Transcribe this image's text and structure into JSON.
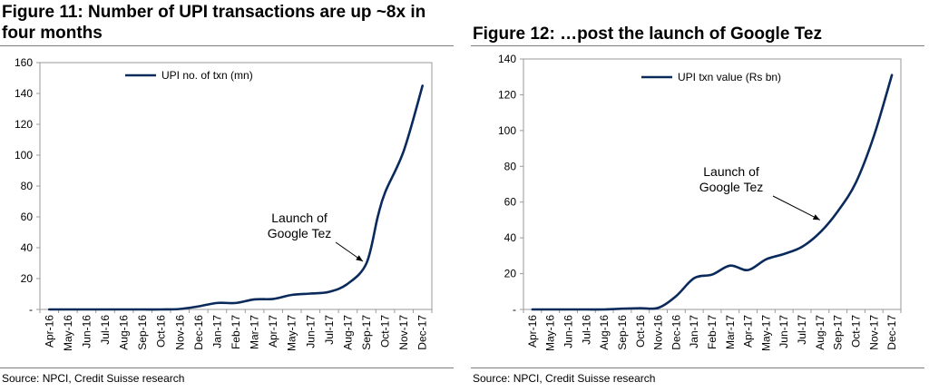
{
  "charts": [
    {
      "figure_title": "Figure 11: Number of UPI transactions are up ~8x in four months",
      "source": "Source: NPCI, Credit Suisse research"
    },
    {
      "figure_title": "Figure 12: …post the launch of Google Tez",
      "source": "Source: NPCI, Credit Suisse research"
    }
  ],
  "chart_data": [
    {
      "type": "line",
      "title": "Figure 11: Number of UPI transactions are up ~8x in four months",
      "x": [
        "Apr-16",
        "May-16",
        "Jun-16",
        "Jul-16",
        "Aug-16",
        "Sep-16",
        "Oct-16",
        "Nov-16",
        "Dec-16",
        "Jan-17",
        "Feb-17",
        "Mar-17",
        "Apr-17",
        "May-17",
        "Jun-17",
        "Jul-17",
        "Aug-17",
        "Sep-17",
        "Oct-17",
        "Nov-17",
        "Dec-17"
      ],
      "yticks": [
        "-",
        "20",
        "40",
        "60",
        "80",
        "100",
        "120",
        "140",
        "160"
      ],
      "ylim": [
        0,
        160
      ],
      "legend_position": "top-left",
      "color": "#0a2a5c",
      "series": [
        {
          "name": "UPI no. of txn (mn)",
          "points": [
            [
              0,
              0
            ],
            [
              1,
              0
            ],
            [
              2,
              0
            ],
            [
              3,
              0
            ],
            [
              4,
              0
            ],
            [
              5,
              0
            ],
            [
              6,
              0
            ],
            [
              7,
              0.3
            ],
            [
              8,
              2
            ],
            [
              9,
              4.2
            ],
            [
              10,
              4.2
            ],
            [
              11,
              6.5
            ],
            [
              12,
              6.8
            ],
            [
              13,
              9.4
            ],
            [
              14,
              10.3
            ],
            [
              15,
              11.4
            ],
            [
              16,
              16.7
            ],
            [
              17,
              30
            ],
            [
              17.6,
              60
            ],
            [
              18,
              76
            ],
            [
              19,
              103
            ],
            [
              20,
              145
            ]
          ]
        }
      ],
      "annotations": [
        {
          "lines": [
            "Launch of",
            "Google Tez"
          ],
          "points_to": [
            17,
            30
          ]
        }
      ]
    },
    {
      "type": "line",
      "title": "Figure 12: …post the launch of Google Tez",
      "x": [
        "Apr-16",
        "May-16",
        "Jun-16",
        "Jul-16",
        "Aug-16",
        "Sep-16",
        "Oct-16",
        "Nov-16",
        "Dec-16",
        "Jan-17",
        "Feb-17",
        "Mar-17",
        "Apr-17",
        "May-17",
        "Jun-17",
        "Jul-17",
        "Aug-17",
        "Sep-17",
        "Oct-17",
        "Nov-17",
        "Dec-17"
      ],
      "yticks": [
        "-",
        "20",
        "40",
        "60",
        "80",
        "100",
        "120",
        "140"
      ],
      "ylim": [
        0,
        140
      ],
      "legend_position": "top-center",
      "color": "#0a2a5c",
      "series": [
        {
          "name": "UPI txn value (Rs bn)",
          "points": [
            [
              0,
              0
            ],
            [
              1,
              0
            ],
            [
              2,
              0
            ],
            [
              3,
              0
            ],
            [
              4,
              0
            ],
            [
              5,
              0.4
            ],
            [
              6,
              0.7
            ],
            [
              7,
              0.9
            ],
            [
              8,
              7.5
            ],
            [
              9,
              17.5
            ],
            [
              10,
              19.5
            ],
            [
              11,
              24.5
            ],
            [
              12,
              22
            ],
            [
              13,
              28
            ],
            [
              14,
              31
            ],
            [
              15,
              35
            ],
            [
              16,
              43
            ],
            [
              17,
              55
            ],
            [
              18,
              71
            ],
            [
              19,
              97
            ],
            [
              20,
              131
            ]
          ]
        }
      ],
      "annotations": [
        {
          "lines": [
            "Launch of",
            "Google Tez"
          ],
          "points_to": [
            16.2,
            49
          ]
        }
      ]
    }
  ]
}
